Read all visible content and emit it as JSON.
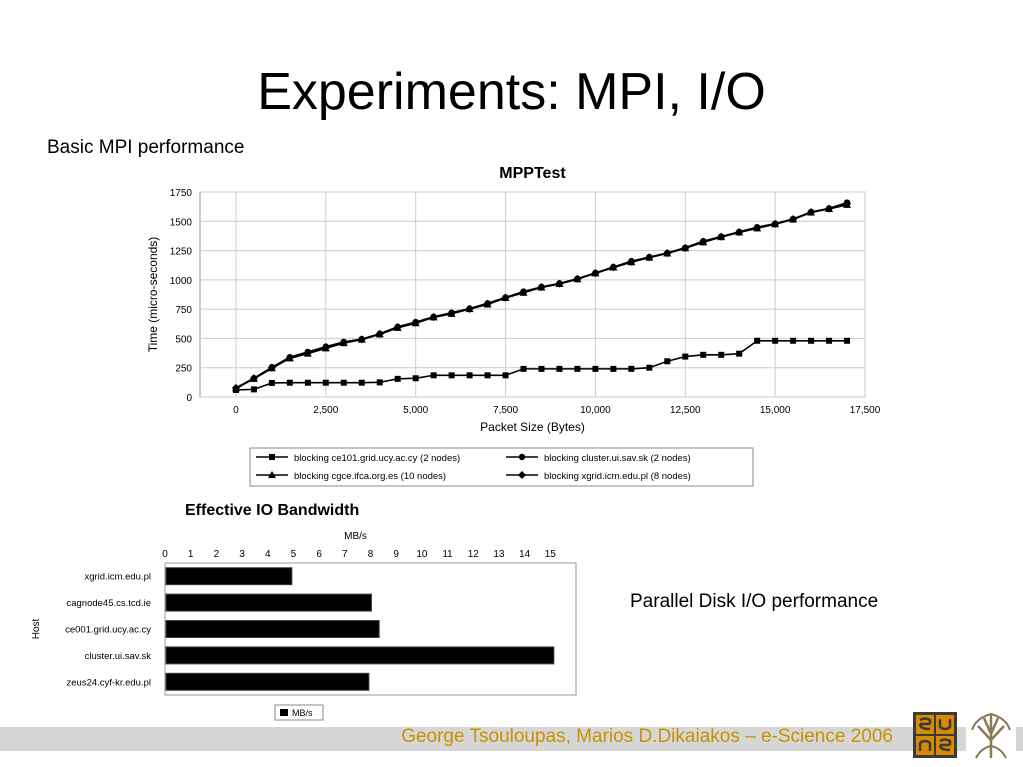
{
  "slide": {
    "title": "Experiments: MPI, I/O",
    "subtitle_mpi": "Basic MPI performance",
    "subtitle_io": "Parallel Disk I/O performance",
    "footer": "George Tsouloupas, Marios D.Dikaiakos – e-Science 2006"
  },
  "colors": {
    "footer_text": "#c79200",
    "footer_bar": "#d6d6d6",
    "logo_orange": "#d98a00"
  },
  "chart_data": [
    {
      "type": "line",
      "title": "MPPTest",
      "xlabel": "Packet Size (Bytes)",
      "ylabel": "Time (micro-seconds)",
      "xlim": [
        -1000,
        17500
      ],
      "ylim": [
        0,
        1750
      ],
      "xticks": [
        0,
        2500,
        5000,
        7500,
        10000,
        12500,
        15000,
        17500
      ],
      "xtick_labels": [
        "0",
        "2,500",
        "5,000",
        "7,500",
        "10,000",
        "12,500",
        "15,000",
        "17,500"
      ],
      "yticks": [
        0,
        250,
        500,
        750,
        1000,
        1250,
        1500,
        1750
      ],
      "ytick_labels": [
        "0",
        "250",
        "500",
        "750",
        "1000",
        "1250",
        "1500",
        "1750"
      ],
      "grid": true,
      "legend_position": "bottom",
      "x": [
        0,
        500,
        1000,
        1500,
        2000,
        2500,
        3000,
        3500,
        4000,
        4500,
        5000,
        5500,
        6000,
        6500,
        7000,
        7500,
        8000,
        8500,
        9000,
        9500,
        10000,
        10500,
        11000,
        11500,
        12000,
        12500,
        13000,
        13500,
        14000,
        14500,
        15000,
        15500,
        16000,
        16500,
        17000
      ],
      "series": [
        {
          "name": "blocking ce101.grid.ucy.ac.cy (2 nodes)",
          "marker": "square",
          "values": [
            60,
            65,
            120,
            122,
            122,
            122,
            122,
            122,
            125,
            155,
            160,
            185,
            185,
            185,
            185,
            185,
            240,
            240,
            240,
            240,
            240,
            240,
            240,
            250,
            305,
            345,
            360,
            360,
            370,
            480,
            480,
            480,
            480,
            480,
            480
          ]
        },
        {
          "name": "blocking cluster.ui.sav.sk (2 nodes)",
          "marker": "circle",
          "values": [
            70,
            160,
            255,
            340,
            385,
            430,
            470,
            495,
            540,
            600,
            640,
            685,
            720,
            755,
            800,
            850,
            900,
            940,
            970,
            1010,
            1060,
            1110,
            1160,
            1195,
            1230,
            1275,
            1330,
            1370,
            1410,
            1450,
            1480,
            1520,
            1580,
            1610,
            1660
          ]
        },
        {
          "name": "blocking cgce.ifca.org.es (10 nodes)",
          "marker": "triangle",
          "values": [
            75,
            155,
            245,
            330,
            370,
            415,
            460,
            490,
            535,
            590,
            630,
            680,
            710,
            750,
            790,
            845,
            890,
            935,
            965,
            1005,
            1055,
            1105,
            1150,
            1190,
            1225,
            1270,
            1320,
            1365,
            1405,
            1440,
            1475,
            1515,
            1575,
            1605,
            1640
          ]
        },
        {
          "name": "blocking xgrid.icm.edu.pl (8 nodes)",
          "marker": "diamond",
          "values": [
            78,
            160,
            250,
            335,
            378,
            420,
            465,
            492,
            538,
            595,
            635,
            682,
            715,
            752,
            795,
            848,
            895,
            938,
            968,
            1008,
            1058,
            1108,
            1155,
            1192,
            1228,
            1272,
            1325,
            1368,
            1408,
            1445,
            1478,
            1518,
            1578,
            1608,
            1650
          ]
        }
      ]
    },
    {
      "type": "bar",
      "orientation": "horizontal",
      "title": "Effective IO Bandwidth",
      "xlabel": "MB/s",
      "ylabel": "Host",
      "xlim": [
        0,
        16
      ],
      "xticks": [
        0,
        1,
        2,
        3,
        4,
        5,
        6,
        7,
        8,
        9,
        10,
        11,
        12,
        13,
        14,
        15
      ],
      "grid": false,
      "legend_position": "bottom",
      "categories": [
        "xgrid.icm.edu.pl",
        "cagnode45.cs.tcd.ie",
        "ce001.grid.ucy.ac.cy",
        "cluster.ui.sav.sk",
        "zeus24.cyf-kr.edu.pl"
      ],
      "series": [
        {
          "name": "MB/s",
          "values": [
            4.9,
            8.0,
            8.3,
            15.1,
            7.9
          ]
        }
      ]
    }
  ]
}
